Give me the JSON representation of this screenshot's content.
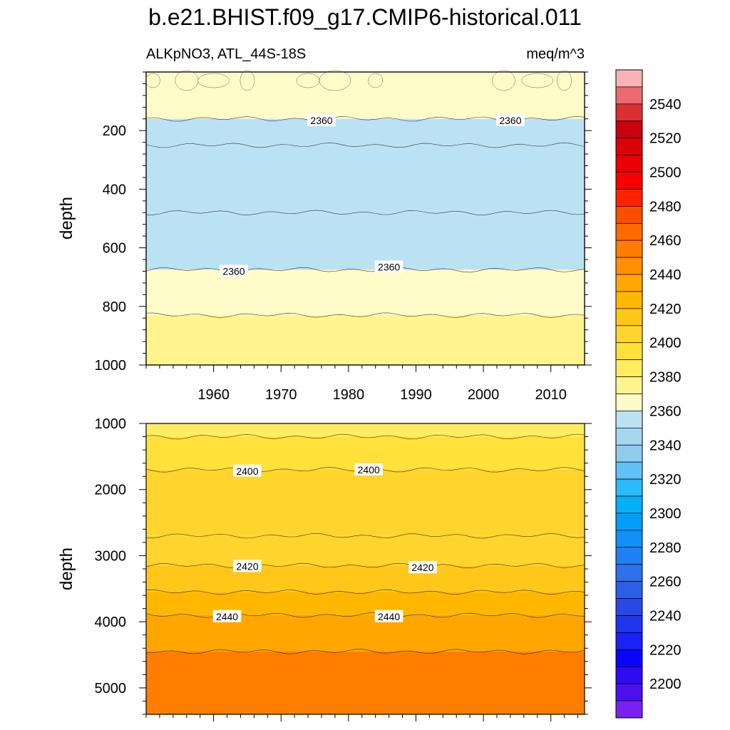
{
  "chart_data": {
    "type": "heatmap",
    "title": "b.e21.BHIST.f09_g17.CMIP6-historical.011",
    "variable_label": "ALKpNO3, ATL_44S-18S",
    "units": "meq/m^3",
    "xlabel": "",
    "ylabel": "depth",
    "x_range": [
      1950,
      2015
    ],
    "x_ticks": [
      1960,
      1970,
      1980,
      1990,
      2000,
      2010
    ],
    "panels": [
      {
        "name": "upper",
        "depth_range": [
          0,
          1000
        ],
        "y_ticks": [
          200,
          400,
          600,
          800,
          1000
        ],
        "layers": [
          {
            "from_depth": 0,
            "to_depth": 160,
            "value_range": [
              2360,
              2365
            ]
          },
          {
            "from_depth": 160,
            "to_depth": 250,
            "value_range": [
              2350,
              2355
            ]
          },
          {
            "from_depth": 250,
            "to_depth": 480,
            "value_range": [
              2345,
              2350
            ]
          },
          {
            "from_depth": 480,
            "to_depth": 675,
            "value_range": [
              2350,
              2355
            ]
          },
          {
            "from_depth": 675,
            "to_depth": 830,
            "value_range": [
              2360,
              2365
            ]
          },
          {
            "from_depth": 830,
            "to_depth": 1000,
            "value_range": [
              2370,
              2375
            ]
          }
        ],
        "contour_labels": [
          {
            "year": 1976,
            "depth": 165,
            "label": "2360"
          },
          {
            "year": 2004,
            "depth": 165,
            "label": "2360"
          },
          {
            "year": 1963,
            "depth": 680,
            "label": "2360"
          },
          {
            "year": 1986,
            "depth": 665,
            "label": "2360"
          }
        ]
      },
      {
        "name": "lower",
        "depth_range": [
          1000,
          5400
        ],
        "y_ticks": [
          1000,
          2000,
          3000,
          4000,
          5000
        ],
        "layers": [
          {
            "from_depth": 1000,
            "to_depth": 1200,
            "value_range": [
              2380,
              2385
            ]
          },
          {
            "from_depth": 1200,
            "to_depth": 1700,
            "value_range": [
              2385,
              2390
            ]
          },
          {
            "from_depth": 1700,
            "to_depth": 2700,
            "value_range": [
              2395,
              2400
            ]
          },
          {
            "from_depth": 2700,
            "to_depth": 3150,
            "value_range": [
              2400,
              2405
            ]
          },
          {
            "from_depth": 3150,
            "to_depth": 3550,
            "value_range": [
              2410,
              2415
            ]
          },
          {
            "from_depth": 3550,
            "to_depth": 3900,
            "value_range": [
              2420,
              2425
            ]
          },
          {
            "from_depth": 3900,
            "to_depth": 4450,
            "value_range": [
              2430,
              2435
            ]
          },
          {
            "from_depth": 4450,
            "to_depth": 5400,
            "value_range": [
              2445,
              2450
            ]
          }
        ],
        "contour_labels": [
          {
            "year": 1965,
            "depth": 1720,
            "label": "2400"
          },
          {
            "year": 1983,
            "depth": 1700,
            "label": "2400"
          },
          {
            "year": 1965,
            "depth": 3160,
            "label": "2420"
          },
          {
            "year": 1991,
            "depth": 3180,
            "label": "2420"
          },
          {
            "year": 1962,
            "depth": 3920,
            "label": "2440"
          },
          {
            "year": 1986,
            "depth": 3920,
            "label": "2440"
          }
        ]
      }
    ],
    "colorbar": {
      "labels": [
        2540,
        2520,
        2500,
        2480,
        2460,
        2440,
        2420,
        2400,
        2380,
        2360,
        2340,
        2320,
        2300,
        2280,
        2260,
        2240,
        2220,
        2200
      ],
      "colors_top_to_bottom": [
        "#f9b3b6",
        "#ec6b6e",
        "#d93033",
        "#c8000d",
        "#dc0008",
        "#ea0004",
        "#fa0000",
        "#ff2400",
        "#ff4d00",
        "#ff6a00",
        "#ff7e00",
        "#ff9000",
        "#ffa600",
        "#ffb700",
        "#ffc71a",
        "#ffd52d",
        "#ffe13a",
        "#ffec60",
        "#fff48e",
        "#fffbc8",
        "#bae2f2",
        "#a5d8f0",
        "#8ecbee",
        "#5fc1f4",
        "#29bcf8",
        "#05b0f6",
        "#039ef6",
        "#1190f8",
        "#2180f1",
        "#2f70ec",
        "#2b5fe5",
        "#2849e6",
        "#1f36ee",
        "#1b22f4",
        "#0a05f9",
        "#2e0bf3",
        "#4c10ef",
        "#7a21f1"
      ]
    }
  }
}
